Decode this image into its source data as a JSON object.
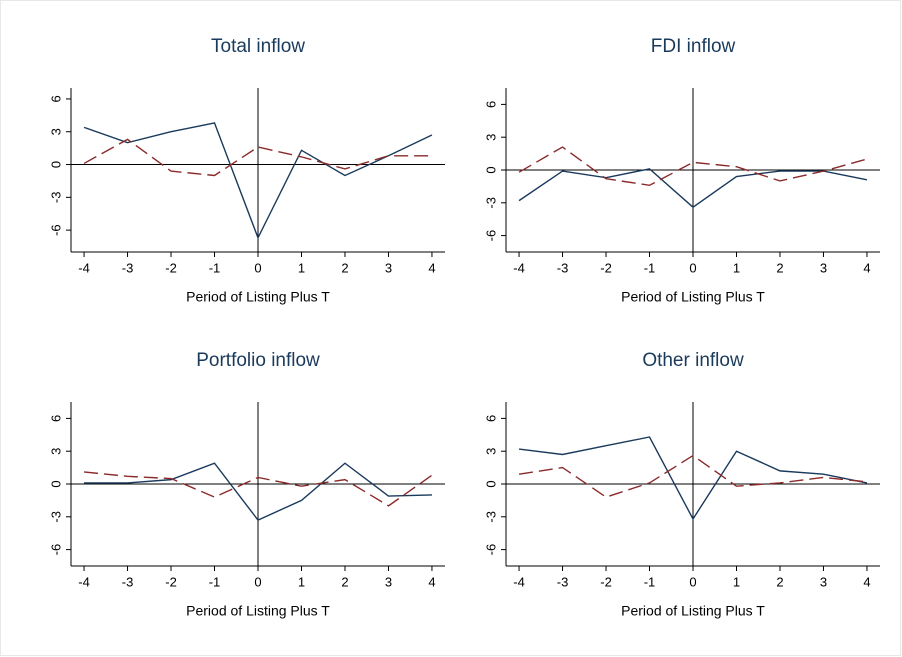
{
  "chart_data": [
    {
      "type": "line",
      "title": "Total inflow",
      "xlabel": "Period of Listing Plus T",
      "x": [
        -4,
        -3,
        -2,
        -1,
        0,
        1,
        2,
        3,
        4
      ],
      "series": [
        {
          "color": "#1a3a5c",
          "style": "solid",
          "values": [
            3.4,
            2.0,
            3.0,
            3.8,
            -6.7,
            1.3,
            -1.0,
            0.8,
            2.7
          ]
        },
        {
          "color": "#8b2a2a",
          "style": "dashed",
          "values": [
            0.1,
            2.3,
            -0.6,
            -1.0,
            1.6,
            0.7,
            -0.4,
            0.8,
            0.8
          ]
        }
      ],
      "xlim": [
        -4.3,
        4.3
      ],
      "ylim": [
        -8,
        7
      ],
      "xticks": [
        -4,
        -3,
        -2,
        -1,
        0,
        1,
        2,
        3,
        4
      ],
      "yticks": [
        -6,
        -3,
        0,
        3,
        6
      ],
      "xline": 0,
      "yline": 0
    },
    {
      "type": "line",
      "title": "FDI inflow",
      "xlabel": "Period of Listing Plus T",
      "x": [
        -4,
        -3,
        -2,
        -1,
        0,
        1,
        2,
        3,
        4
      ],
      "series": [
        {
          "color": "#1a3a5c",
          "style": "solid",
          "values": [
            -2.8,
            -0.1,
            -0.7,
            0.1,
            -3.4,
            -0.6,
            -0.1,
            -0.1,
            -0.9
          ]
        },
        {
          "color": "#8b2a2a",
          "style": "dashed",
          "values": [
            -0.2,
            2.1,
            -0.8,
            -1.4,
            0.7,
            0.3,
            -1.0,
            -0.1,
            1.0
          ]
        }
      ],
      "xlim": [
        -4.3,
        4.3
      ],
      "ylim": [
        -7.5,
        7.5
      ],
      "xticks": [
        -4,
        -3,
        -2,
        -1,
        0,
        1,
        2,
        3,
        4
      ],
      "yticks": [
        -6,
        -3,
        0,
        3,
        6
      ],
      "xline": 0,
      "yline": 0
    },
    {
      "type": "line",
      "title": "Portfolio inflow",
      "xlabel": "Period of Listing Plus T",
      "x": [
        -4,
        -3,
        -2,
        -1,
        0,
        1,
        2,
        3,
        4
      ],
      "series": [
        {
          "color": "#1a3a5c",
          "style": "solid",
          "values": [
            0.1,
            0.1,
            0.4,
            1.9,
            -3.3,
            -1.5,
            1.9,
            -1.1,
            -1.0
          ]
        },
        {
          "color": "#8b2a2a",
          "style": "dashed",
          "values": [
            1.1,
            0.7,
            0.5,
            -1.2,
            0.6,
            -0.2,
            0.4,
            -2.0,
            0.8
          ]
        }
      ],
      "xlim": [
        -4.3,
        4.3
      ],
      "ylim": [
        -7.5,
        7.5
      ],
      "xticks": [
        -4,
        -3,
        -2,
        -1,
        0,
        1,
        2,
        3,
        4
      ],
      "yticks": [
        -6,
        -3,
        0,
        3,
        6
      ],
      "xline": 0,
      "yline": 0
    },
    {
      "type": "line",
      "title": "Other inflow",
      "xlabel": "Period of Listing Plus T",
      "x": [
        -4,
        -3,
        -2,
        -1,
        0,
        1,
        2,
        3,
        4
      ],
      "series": [
        {
          "color": "#1a3a5c",
          "style": "solid",
          "values": [
            3.2,
            2.7,
            3.5,
            4.3,
            -3.2,
            3.0,
            1.2,
            0.9,
            0.1
          ]
        },
        {
          "color": "#8b2a2a",
          "style": "dashed",
          "values": [
            0.9,
            1.5,
            -1.2,
            0.1,
            2.6,
            -0.2,
            0.1,
            0.6,
            0.2
          ]
        }
      ],
      "xlim": [
        -4.3,
        4.3
      ],
      "ylim": [
        -7.5,
        7.5
      ],
      "xticks": [
        -4,
        -3,
        -2,
        -1,
        0,
        1,
        2,
        3,
        4
      ],
      "yticks": [
        -6,
        -3,
        0,
        3,
        6
      ],
      "xline": 0,
      "yline": 0
    }
  ]
}
